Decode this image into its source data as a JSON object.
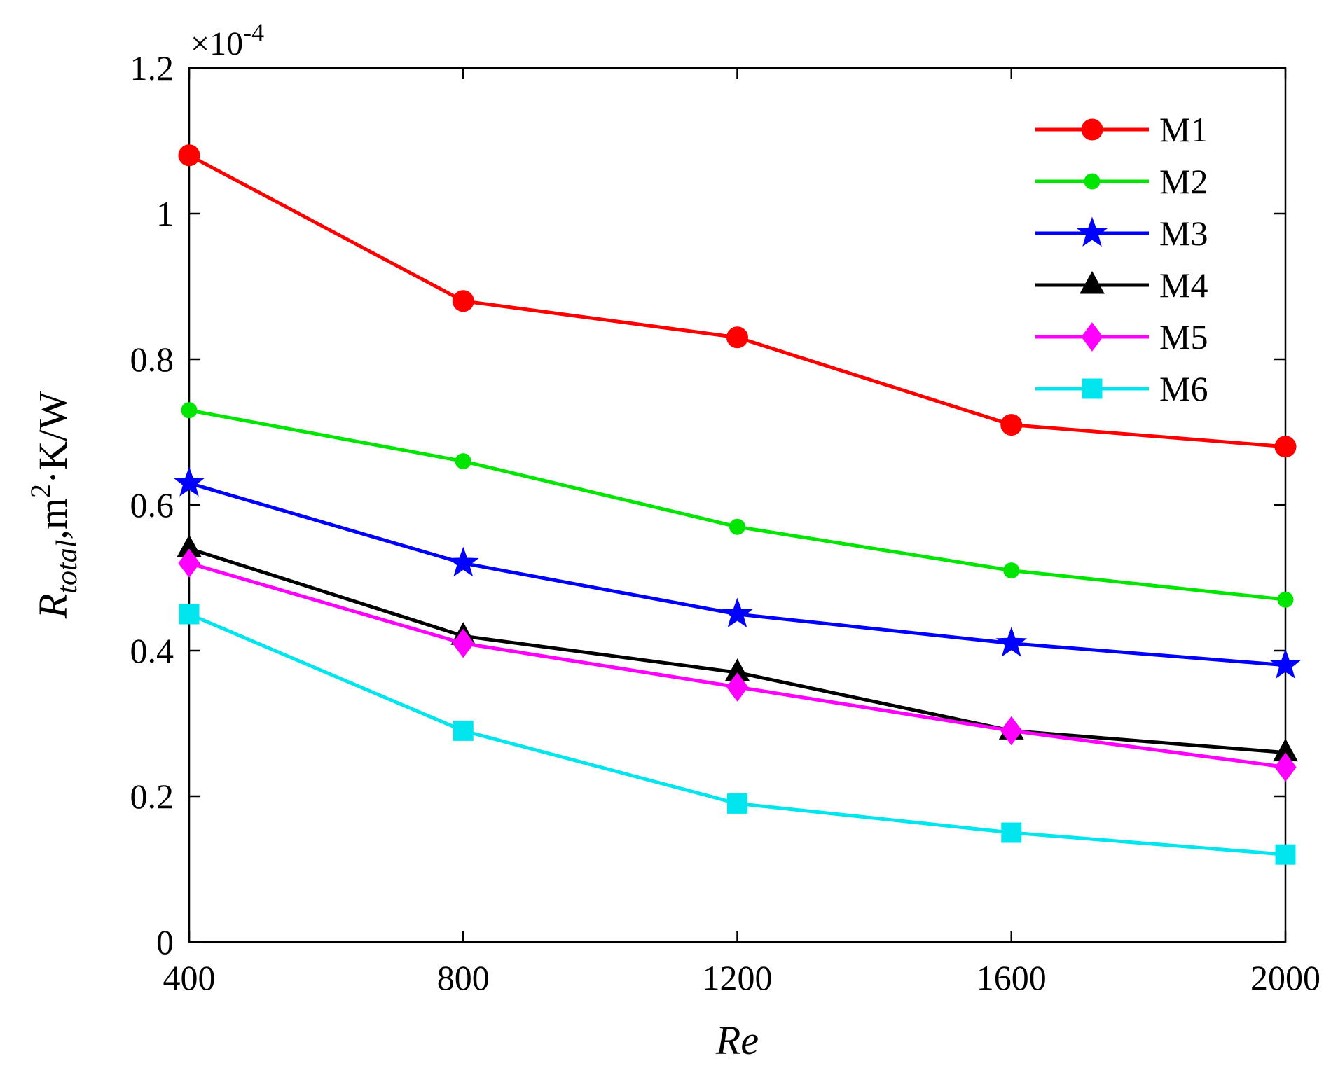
{
  "chart_data": {
    "type": "line",
    "title": "",
    "xlabel": "Re",
    "ylabel": {
      "symbol": "R",
      "subscript": "total",
      "unit_prefix": ",m",
      "unit_exp": "2",
      "unit_suffix": "·K/W"
    },
    "y_multiplier": {
      "prefix": "×10",
      "exponent": "-4"
    },
    "x": [
      400,
      800,
      1200,
      1600,
      2000
    ],
    "xlim": [
      400,
      2000
    ],
    "ylim": [
      0,
      1.2
    ],
    "x_ticks": [
      400,
      800,
      1200,
      1600,
      2000
    ],
    "x_tick_labels": [
      "400",
      "800",
      "1200",
      "1600",
      "2000"
    ],
    "y_ticks": [
      0,
      0.2,
      0.4,
      0.6,
      0.8,
      1.0,
      1.2
    ],
    "y_tick_labels": [
      "0",
      "0.2",
      "0.4",
      "0.6",
      "0.8",
      "1",
      "1.2"
    ],
    "grid": false,
    "legend_position": "top-right",
    "series": [
      {
        "name": "M1",
        "color": "#ff0000",
        "marker": "circle",
        "values": [
          1.08,
          0.88,
          0.83,
          0.71,
          0.68
        ]
      },
      {
        "name": "M2",
        "color": "#00e600",
        "marker": "dot",
        "values": [
          0.73,
          0.66,
          0.57,
          0.51,
          0.47
        ]
      },
      {
        "name": "M3",
        "color": "#0000ff",
        "marker": "star",
        "values": [
          0.63,
          0.52,
          0.45,
          0.41,
          0.38
        ]
      },
      {
        "name": "M4",
        "color": "#000000",
        "marker": "triangle",
        "values": [
          0.54,
          0.42,
          0.37,
          0.29,
          0.26
        ]
      },
      {
        "name": "M5",
        "color": "#ff00ff",
        "marker": "diamond",
        "values": [
          0.52,
          0.41,
          0.35,
          0.29,
          0.24
        ]
      },
      {
        "name": "M6",
        "color": "#00e5ee",
        "marker": "square",
        "values": [
          0.45,
          0.29,
          0.19,
          0.15,
          0.12
        ]
      }
    ]
  }
}
